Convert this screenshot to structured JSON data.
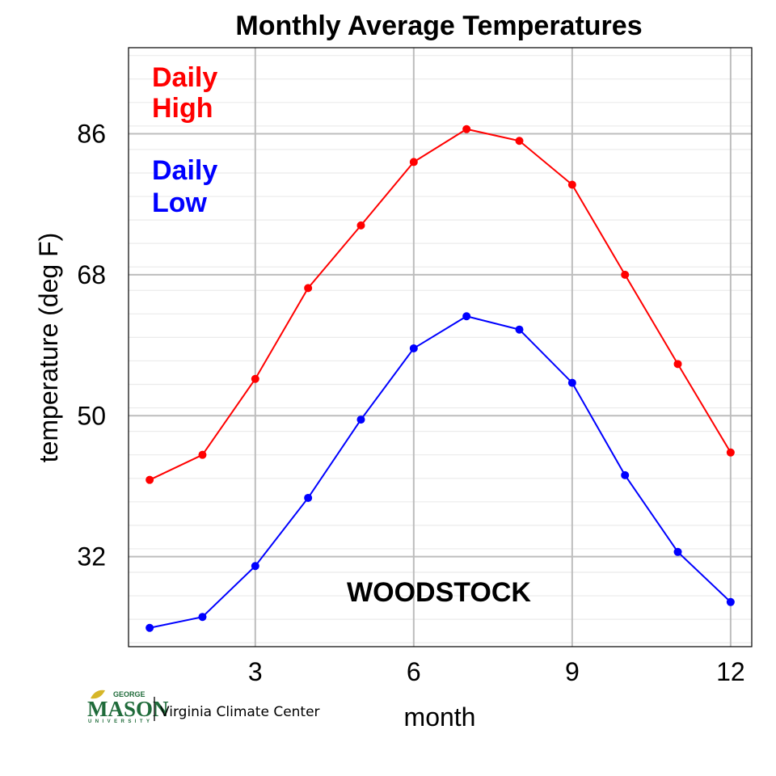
{
  "chart_data": {
    "type": "line",
    "title": "Monthly Average Temperatures",
    "xlabel": "month",
    "ylabel": "temperature (deg F)",
    "x": [
      1,
      2,
      3,
      4,
      5,
      6,
      7,
      8,
      9,
      10,
      11,
      12
    ],
    "xlim": [
      0.6,
      12.4
    ],
    "ylim": [
      20.5,
      97
    ],
    "xticks": [
      3,
      6,
      9,
      12
    ],
    "yticks": [
      32,
      50,
      68,
      86
    ],
    "grid": true,
    "series": [
      {
        "name": "Daily High",
        "color": "#ff0000",
        "values": [
          41.8,
          45.0,
          54.7,
          66.3,
          74.3,
          82.4,
          86.6,
          85.1,
          79.5,
          68.0,
          56.6,
          45.3
        ]
      },
      {
        "name": "Daily Low",
        "color": "#0000ff",
        "values": [
          22.9,
          24.3,
          30.8,
          39.5,
          49.5,
          58.6,
          62.7,
          61.0,
          54.2,
          42.4,
          32.6,
          26.2
        ]
      }
    ],
    "legend": {
      "placement": "top-left",
      "high_line1": "Daily",
      "high_line2": "High",
      "low_line1": "Daily",
      "low_line2": "Low"
    },
    "annotation": "WOODSTOCK"
  },
  "logo": {
    "small_top": "GEORGE",
    "main": "MASON",
    "small_bottom": "UNIVERSITY",
    "text": "Virginia Climate Center"
  }
}
